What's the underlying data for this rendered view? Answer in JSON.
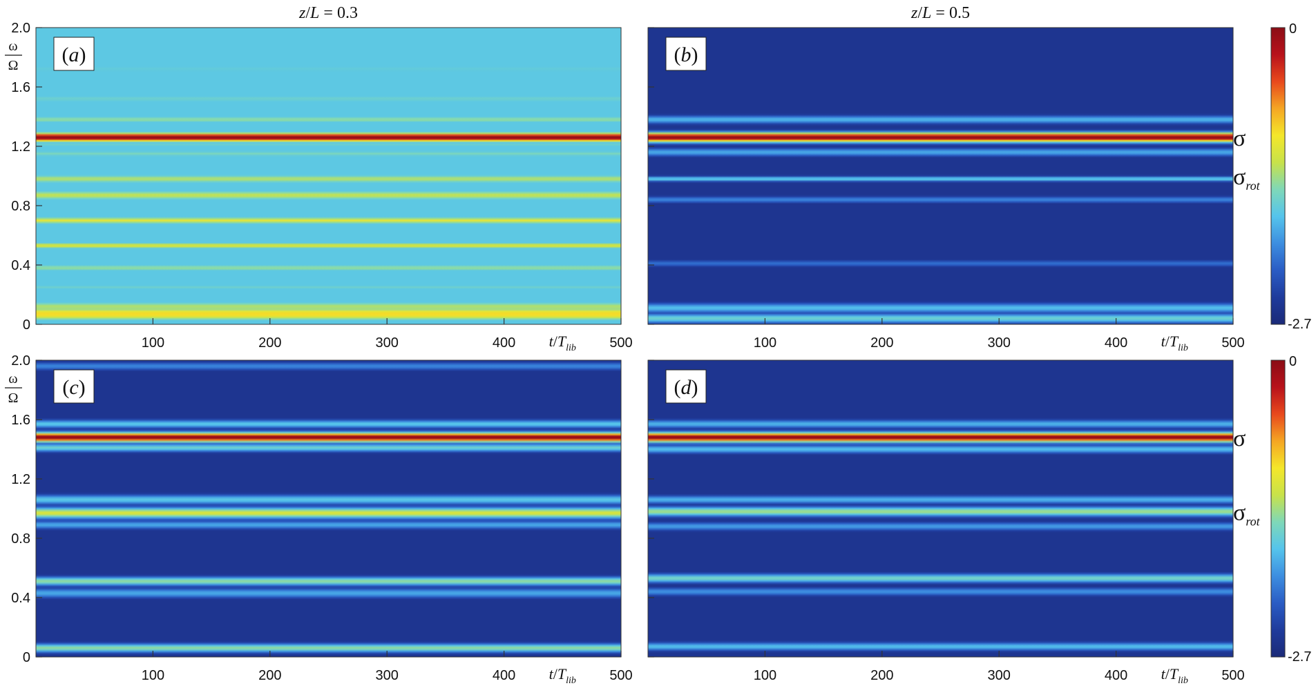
{
  "chart_data": {
    "type": "heatmap",
    "colormap": [
      "#1b2a78",
      "#1f3b9c",
      "#2a5cc4",
      "#3d8ee0",
      "#55c4ec",
      "#7fd8b8",
      "#c8e24a",
      "#f4e72a",
      "#f5a623",
      "#e8491d",
      "#b8121b",
      "#8b0d16"
    ],
    "colorbar": {
      "min": -2.7,
      "max": 0,
      "min_label": "-2.7",
      "max_label": "0"
    },
    "x_axis": {
      "label_t": "t",
      "label_slash": "/",
      "label_T": "T",
      "label_sub": "lib",
      "range": [
        0,
        500
      ],
      "ticks": [
        100,
        200,
        300,
        400,
        500
      ]
    },
    "y_axis": {
      "numerator": "ω",
      "denominator": "Ω",
      "range": [
        0,
        2.0
      ],
      "ticks": [
        0,
        0.4,
        0.8,
        1.2,
        1.6,
        2.0
      ],
      "tick_labels": [
        "0",
        "0.4",
        "0.8",
        "1.2",
        "1.6",
        "2.0"
      ]
    },
    "column_titles": [
      {
        "z": "z",
        "slash": "/",
        "L": "L",
        "eq": " = 0.3"
      },
      {
        "z": "z",
        "slash": "/",
        "L": "L",
        "eq": " = 0.5"
      }
    ],
    "row_annotations": [
      {
        "sigma": "σ",
        "sigma_y": 1.26,
        "sigma_rot": "σ",
        "sigma_rot_sub": "rot",
        "sigma_rot_y": 0.99
      },
      {
        "sigma": "σ",
        "sigma_y": 1.48,
        "sigma_rot": "σ",
        "sigma_rot_sub": "rot",
        "sigma_rot_y": 0.97
      }
    ],
    "panels": [
      {
        "tag_open": "(",
        "tag": "a",
        "tag_close": ")",
        "background": 0.38,
        "bands": [
          {
            "y": 1.26,
            "level": 1.0,
            "width": 0.012
          },
          {
            "y": 1.38,
            "level": 0.48,
            "width": 0.012
          },
          {
            "y": 1.15,
            "level": 0.45,
            "width": 0.012
          },
          {
            "y": 1.21,
            "level": 0.42,
            "width": 0.008
          },
          {
            "y": 0.98,
            "level": 0.52,
            "width": 0.014
          },
          {
            "y": 0.87,
            "level": 0.54,
            "width": 0.016
          },
          {
            "y": 0.7,
            "level": 0.62,
            "width": 0.009
          },
          {
            "y": 0.53,
            "level": 0.58,
            "width": 0.01
          },
          {
            "y": 0.38,
            "level": 0.48,
            "width": 0.013
          },
          {
            "y": 0.25,
            "level": 0.42,
            "width": 0.012
          },
          {
            "y": 0.12,
            "level": 0.52,
            "width": 0.016
          },
          {
            "y": 0.07,
            "level": 0.66,
            "width": 0.02
          },
          {
            "y": 1.52,
            "level": 0.42,
            "width": 0.014
          },
          {
            "y": 1.72,
            "level": 0.4,
            "width": 0.015
          },
          {
            "y": 1.9,
            "level": 0.36,
            "width": 0.015
          }
        ]
      },
      {
        "tag_open": "(",
        "tag": "b",
        "tag_close": ")",
        "background": 0.06,
        "bands": [
          {
            "y": 1.26,
            "level": 1.0,
            "width": 0.012
          },
          {
            "y": 1.38,
            "level": 0.34,
            "width": 0.01
          },
          {
            "y": 1.16,
            "level": 0.32,
            "width": 0.01
          },
          {
            "y": 0.98,
            "level": 0.4,
            "width": 0.006
          },
          {
            "y": 0.84,
            "level": 0.26,
            "width": 0.008
          },
          {
            "y": 0.41,
            "level": 0.22,
            "width": 0.008
          },
          {
            "y": 0.11,
            "level": 0.36,
            "width": 0.012
          },
          {
            "y": 0.04,
            "level": 0.42,
            "width": 0.012
          }
        ]
      },
      {
        "tag_open": "(",
        "tag": "c",
        "tag_close": ")",
        "background": 0.06,
        "bands": [
          {
            "y": 1.48,
            "level": 1.0,
            "width": 0.012
          },
          {
            "y": 1.57,
            "level": 0.38,
            "width": 0.01
          },
          {
            "y": 1.41,
            "level": 0.42,
            "width": 0.01
          },
          {
            "y": 1.06,
            "level": 0.38,
            "width": 0.012
          },
          {
            "y": 0.97,
            "level": 0.58,
            "width": 0.014
          },
          {
            "y": 0.89,
            "level": 0.32,
            "width": 0.01
          },
          {
            "y": 0.51,
            "level": 0.48,
            "width": 0.011
          },
          {
            "y": 0.43,
            "level": 0.32,
            "width": 0.012
          },
          {
            "y": 0.06,
            "level": 0.48,
            "width": 0.011
          },
          {
            "y": 1.96,
            "level": 0.26,
            "width": 0.01
          }
        ]
      },
      {
        "tag_open": "(",
        "tag": "d",
        "tag_close": ")",
        "background": 0.06,
        "bands": [
          {
            "y": 1.48,
            "level": 1.0,
            "width": 0.012
          },
          {
            "y": 1.57,
            "level": 0.34,
            "width": 0.01
          },
          {
            "y": 1.4,
            "level": 0.36,
            "width": 0.01
          },
          {
            "y": 1.06,
            "level": 0.34,
            "width": 0.01
          },
          {
            "y": 0.98,
            "level": 0.5,
            "width": 0.012
          },
          {
            "y": 0.88,
            "level": 0.3,
            "width": 0.01
          },
          {
            "y": 0.53,
            "level": 0.44,
            "width": 0.011
          },
          {
            "y": 0.44,
            "level": 0.28,
            "width": 0.01
          },
          {
            "y": 0.07,
            "level": 0.36,
            "width": 0.01
          }
        ]
      }
    ]
  }
}
